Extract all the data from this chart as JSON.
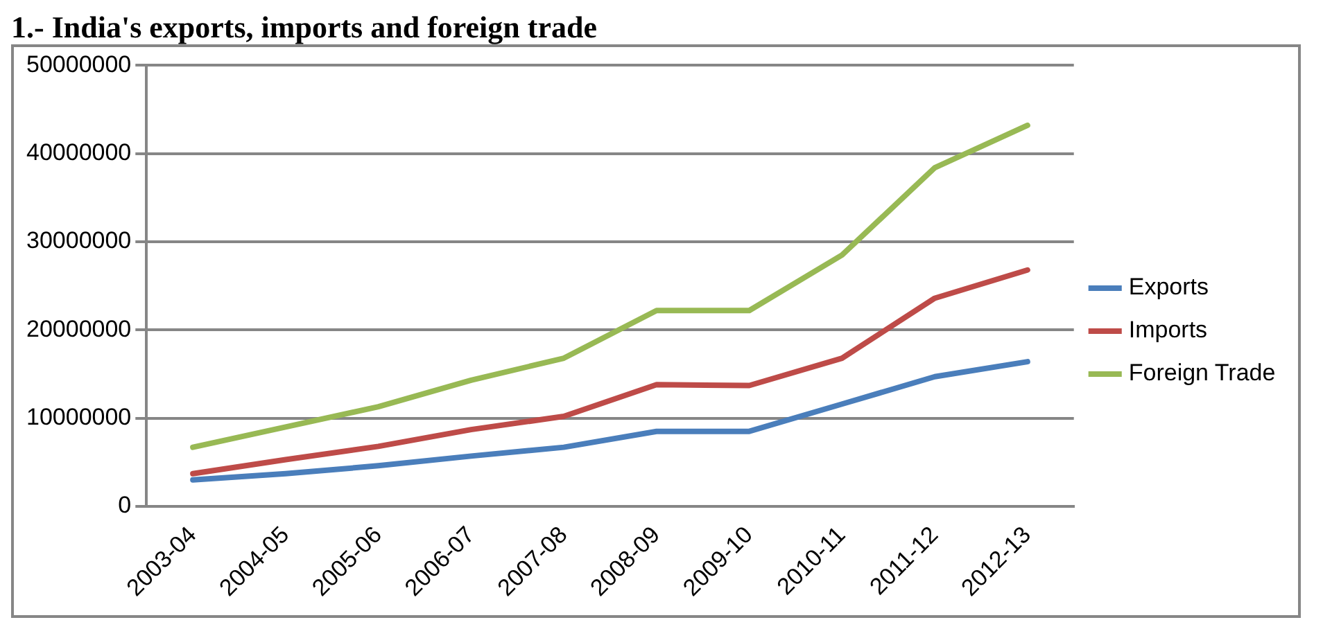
{
  "chart_data": {
    "type": "line",
    "title": "1.- India's exports, imports and foreign trade",
    "categories": [
      "2003-04",
      "2004-05",
      "2005-06",
      "2006-07",
      "2007-08",
      "2008-09",
      "2009-10",
      "2010-11",
      "2011-12",
      "2012-13"
    ],
    "series": [
      {
        "name": "Exports",
        "color": "#4a7ebb",
        "values": [
          3000000,
          3700000,
          4600000,
          5700000,
          6700000,
          8500000,
          8500000,
          11600000,
          14700000,
          16400000
        ]
      },
      {
        "name": "Imports",
        "color": "#be4b48",
        "values": [
          3700000,
          5300000,
          6800000,
          8700000,
          10200000,
          13800000,
          13700000,
          16800000,
          23600000,
          26800000
        ]
      },
      {
        "name": "Foreign Trade",
        "color": "#98b954",
        "values": [
          6700000,
          9000000,
          11300000,
          14300000,
          16800000,
          22200000,
          22200000,
          28500000,
          38400000,
          43200000
        ]
      }
    ],
    "ylim": [
      0,
      50000000
    ],
    "yticks": [
      0,
      10000000,
      20000000,
      30000000,
      40000000,
      50000000
    ],
    "grid": "y",
    "legend": "right",
    "marker": "none",
    "line_style": "solid"
  }
}
